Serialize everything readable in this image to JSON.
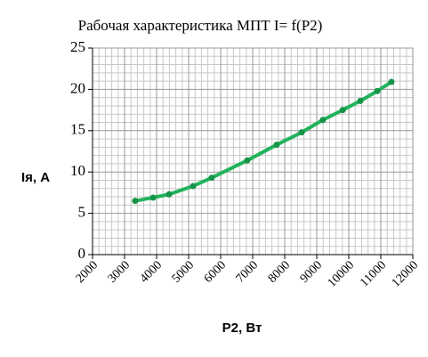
{
  "chart_data": {
    "type": "line",
    "title": "Рабочая характеристика  МПТ  I= f(P2)",
    "x_label": "P2, Вт",
    "y_label": "Iя, А",
    "x": [
      3330,
      3890,
      4390,
      5140,
      5720,
      6830,
      7750,
      8530,
      9190,
      9810,
      10360,
      10890,
      11330
    ],
    "series": [
      {
        "name": "I",
        "color": "#21b35b",
        "values": [
          6.5,
          6.9,
          7.3,
          8.3,
          9.3,
          11.4,
          13.3,
          14.8,
          16.3,
          17.5,
          18.6,
          19.8,
          20.9
        ]
      }
    ],
    "xlim": [
      2000,
      12000
    ],
    "xticks": [
      2000,
      3000,
      4000,
      5000,
      6000,
      7000,
      8000,
      9000,
      10000,
      11000,
      12000
    ],
    "ylim": [
      0,
      25
    ],
    "yticks": [
      0,
      5,
      10,
      15,
      20,
      25
    ],
    "grid": true
  }
}
